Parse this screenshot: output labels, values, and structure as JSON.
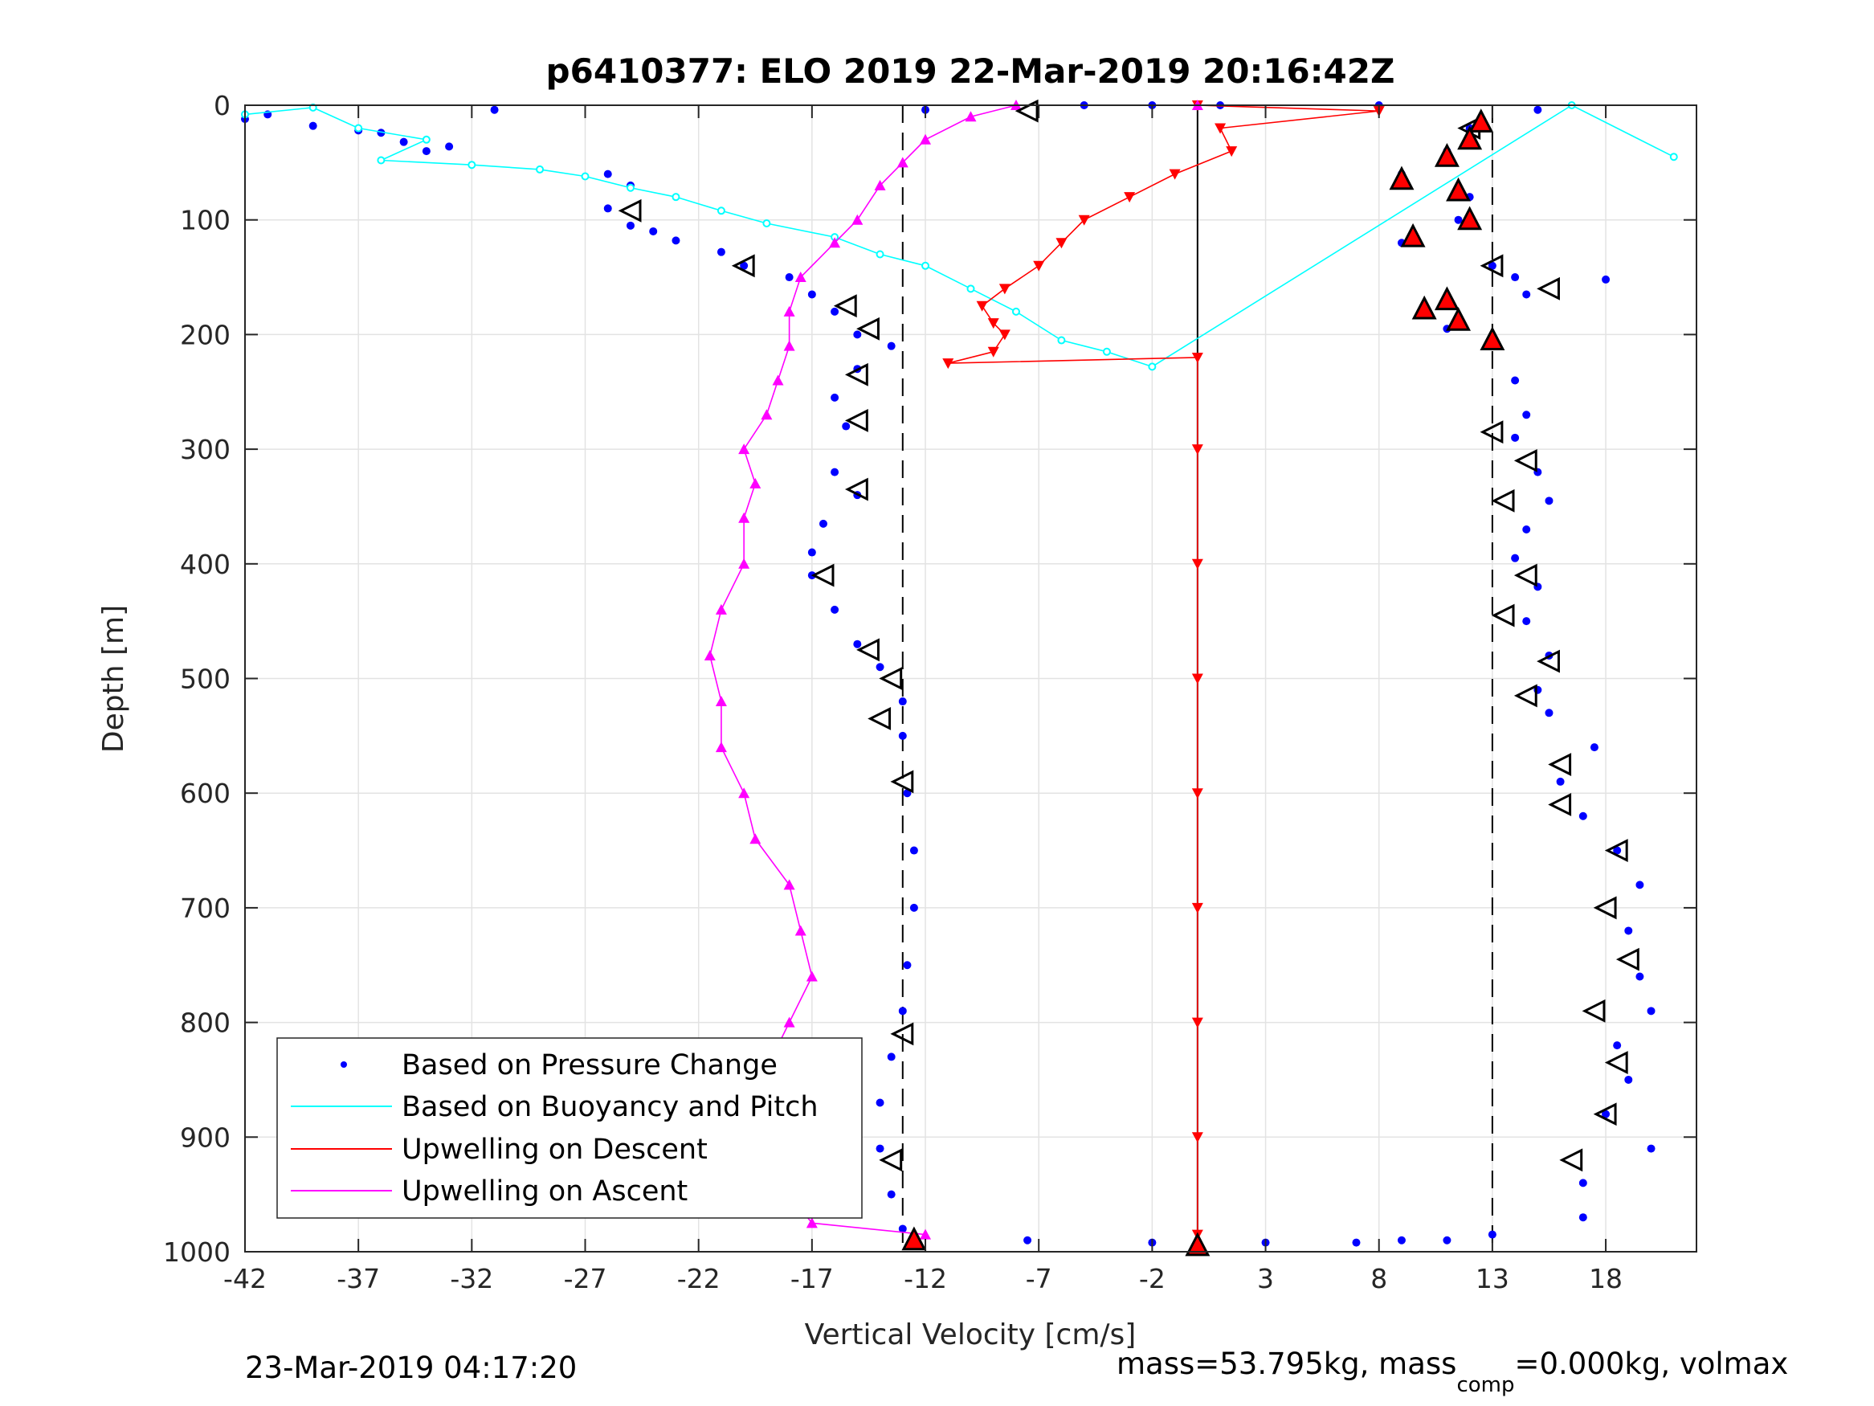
{
  "chart_data": {
    "type": "scatter",
    "title": "p6410377: ELO 2019 22-Mar-2019 20:16:42Z",
    "xlabel": "Vertical Velocity [cm/s]",
    "ylabel": "Depth [m]",
    "xlim": [
      -42,
      22
    ],
    "ylim": [
      0,
      1000
    ],
    "y_reversed": true,
    "xticks": [
      -42,
      -37,
      -32,
      -27,
      -22,
      -17,
      -12,
      -7,
      -2,
      3,
      8,
      13,
      18
    ],
    "xtick_labels": [
      "-42",
      "-37",
      "-32",
      "-27",
      "-22",
      "-17",
      "-12",
      "-7",
      "-2",
      "3",
      "8",
      "13",
      "18"
    ],
    "yticks": [
      0,
      100,
      200,
      300,
      400,
      500,
      600,
      700,
      800,
      900,
      1000
    ],
    "ytick_labels": [
      "0",
      "100",
      "200",
      "300",
      "400",
      "500",
      "600",
      "700",
      "800",
      "900",
      "1000"
    ],
    "grid": true,
    "legend_position": "bottom-left",
    "colors": {
      "pressure": "#0000ff",
      "buoyancy": "#00ffff",
      "descent": "#ff0000",
      "ascent": "#ff00ff"
    },
    "reference_lines": [
      {
        "x": -13,
        "style": "dashed"
      },
      {
        "x": 13,
        "style": "dashed"
      },
      {
        "x": 0,
        "style": "solid"
      }
    ],
    "series": [
      {
        "name": "Based on Pressure Change",
        "marker": "dot",
        "points": [
          [
            -42,
            12
          ],
          [
            -41,
            8
          ],
          [
            -39,
            18
          ],
          [
            -37,
            22
          ],
          [
            -36,
            24
          ],
          [
            -35,
            32
          ],
          [
            -34,
            40
          ],
          [
            -33,
            36
          ],
          [
            -31,
            4
          ],
          [
            -26,
            60
          ],
          [
            -25,
            70
          ],
          [
            -26,
            90
          ],
          [
            -25,
            105
          ],
          [
            -24,
            110
          ],
          [
            -23,
            118
          ],
          [
            -21,
            128
          ],
          [
            -20,
            140
          ],
          [
            -18,
            150
          ],
          [
            -17,
            165
          ],
          [
            -16,
            180
          ],
          [
            -15,
            200
          ],
          [
            -13.5,
            210
          ],
          [
            -15,
            230
          ],
          [
            -16,
            255
          ],
          [
            -15.5,
            280
          ],
          [
            -16,
            320
          ],
          [
            -15,
            340
          ],
          [
            -16.5,
            365
          ],
          [
            -17,
            390
          ],
          [
            -17,
            410
          ],
          [
            -16,
            440
          ],
          [
            -15,
            470
          ],
          [
            -14,
            490
          ],
          [
            -13,
            520
          ],
          [
            -13,
            550
          ],
          [
            -12.8,
            600
          ],
          [
            -12.5,
            650
          ],
          [
            -12.5,
            700
          ],
          [
            -12.8,
            750
          ],
          [
            -13,
            790
          ],
          [
            -13.5,
            830
          ],
          [
            -14,
            870
          ],
          [
            -14,
            910
          ],
          [
            -13.5,
            950
          ],
          [
            -13,
            980
          ],
          [
            -12.5,
            992
          ],
          [
            -7.5,
            990
          ],
          [
            -2,
            992
          ],
          [
            3,
            992
          ],
          [
            7,
            992
          ],
          [
            9,
            990
          ],
          [
            11,
            990
          ],
          [
            13,
            985
          ],
          [
            -12,
            4
          ],
          [
            -5,
            0
          ],
          [
            -2,
            0
          ],
          [
            1,
            0
          ],
          [
            8,
            0
          ],
          [
            15,
            4
          ],
          [
            12,
            20
          ],
          [
            11,
            40
          ],
          [
            9,
            60
          ],
          [
            12,
            80
          ],
          [
            11.5,
            100
          ],
          [
            9,
            120
          ],
          [
            13,
            140
          ],
          [
            14,
            150
          ],
          [
            14.5,
            165
          ],
          [
            18,
            152
          ],
          [
            10,
            180
          ],
          [
            11,
            195
          ],
          [
            13,
            210
          ],
          [
            14,
            240
          ],
          [
            14.5,
            270
          ],
          [
            14,
            290
          ],
          [
            15,
            320
          ],
          [
            15.5,
            345
          ],
          [
            14.5,
            370
          ],
          [
            14,
            395
          ],
          [
            15,
            420
          ],
          [
            14.5,
            450
          ],
          [
            15.5,
            480
          ],
          [
            15,
            510
          ],
          [
            15.5,
            530
          ],
          [
            17.5,
            560
          ],
          [
            16,
            590
          ],
          [
            17,
            620
          ],
          [
            18.5,
            650
          ],
          [
            19.5,
            680
          ],
          [
            19,
            720
          ],
          [
            19.5,
            760
          ],
          [
            20,
            790
          ],
          [
            18.5,
            820
          ],
          [
            19,
            850
          ],
          [
            18,
            880
          ],
          [
            20,
            910
          ],
          [
            17,
            940
          ],
          [
            17,
            970
          ]
        ]
      },
      {
        "name": "Based on Buoyancy and Pitch",
        "marker": "circle-line",
        "points": [
          [
            -42,
            8
          ],
          [
            -39,
            2
          ],
          [
            -37,
            20
          ],
          [
            -34,
            30
          ],
          [
            -36,
            48
          ],
          [
            -32,
            52
          ],
          [
            -29,
            56
          ],
          [
            -27,
            62
          ],
          [
            -25,
            72
          ],
          [
            -23,
            80
          ],
          [
            -21,
            92
          ],
          [
            -19,
            103
          ],
          [
            -16,
            115
          ],
          [
            -14,
            130
          ],
          [
            -12,
            140
          ],
          [
            -10,
            160
          ],
          [
            -8,
            180
          ],
          [
            -6,
            205
          ],
          [
            -4,
            215
          ],
          [
            -2,
            228
          ],
          [
            16.5,
            0
          ],
          [
            21,
            45
          ]
        ]
      },
      {
        "name": "Upwelling on Descent",
        "marker": "triangle-down-line",
        "points": [
          [
            0,
            0
          ],
          [
            8,
            5
          ],
          [
            1,
            20
          ],
          [
            1.5,
            40
          ],
          [
            -1,
            60
          ],
          [
            -3,
            80
          ],
          [
            -5,
            100
          ],
          [
            -6,
            120
          ],
          [
            -7,
            140
          ],
          [
            -8.5,
            160
          ],
          [
            -9.5,
            175
          ],
          [
            -9,
            190
          ],
          [
            -8.5,
            200
          ],
          [
            -9,
            215
          ],
          [
            -11,
            225
          ],
          [
            0,
            220
          ],
          [
            0,
            300
          ],
          [
            0,
            400
          ],
          [
            0,
            500
          ],
          [
            0,
            600
          ],
          [
            0,
            700
          ],
          [
            0,
            800
          ],
          [
            0,
            900
          ],
          [
            0,
            985
          ]
        ]
      },
      {
        "name": "Upwelling on Ascent",
        "marker": "triangle-up-line",
        "points": [
          [
            -12,
            985
          ],
          [
            -17,
            975
          ],
          [
            -18,
            950
          ],
          [
            -19,
            910
          ],
          [
            -18.5,
            880
          ],
          [
            -19,
            840
          ],
          [
            -18,
            800
          ],
          [
            -17,
            760
          ],
          [
            -17.5,
            720
          ],
          [
            -18,
            680
          ],
          [
            -19.5,
            640
          ],
          [
            -20,
            600
          ],
          [
            -21,
            560
          ],
          [
            -21,
            520
          ],
          [
            -21.5,
            480
          ],
          [
            -21,
            440
          ],
          [
            -20,
            400
          ],
          [
            -20,
            360
          ],
          [
            -19.5,
            330
          ],
          [
            -20,
            300
          ],
          [
            -19,
            270
          ],
          [
            -18.5,
            240
          ],
          [
            -18,
            210
          ],
          [
            -18,
            180
          ],
          [
            -17.5,
            150
          ],
          [
            -16,
            120
          ],
          [
            -15,
            100
          ],
          [
            -14,
            70
          ],
          [
            -13,
            50
          ],
          [
            -12,
            30
          ],
          [
            -10,
            10
          ],
          [
            -8,
            0
          ],
          [
            0,
            0
          ]
        ]
      },
      {
        "name": "",
        "marker": "open-triangle",
        "points": [
          [
            -7.5,
            5
          ],
          [
            -25,
            92
          ],
          [
            -20,
            140
          ],
          [
            -15.5,
            175
          ],
          [
            -14.5,
            195
          ],
          [
            -15,
            235
          ],
          [
            -15,
            275
          ],
          [
            -15,
            335
          ],
          [
            -16.5,
            410
          ],
          [
            -14.5,
            475
          ],
          [
            -13.5,
            500
          ],
          [
            -14,
            535
          ],
          [
            -13,
            590
          ],
          [
            -13,
            810
          ],
          [
            -13.5,
            920
          ],
          [
            12,
            20
          ],
          [
            13,
            140
          ],
          [
            15.5,
            160
          ],
          [
            13,
            285
          ],
          [
            14.5,
            310
          ],
          [
            13.5,
            345
          ],
          [
            14.5,
            410
          ],
          [
            13.5,
            445
          ],
          [
            15.5,
            485
          ],
          [
            14.5,
            515
          ],
          [
            16,
            575
          ],
          [
            16,
            610
          ],
          [
            18.5,
            650
          ],
          [
            18,
            700
          ],
          [
            19,
            745
          ],
          [
            17.5,
            790
          ],
          [
            18.5,
            835
          ],
          [
            18,
            880
          ],
          [
            16.5,
            920
          ]
        ]
      },
      {
        "name": "",
        "marker": "filled-triangle",
        "points": [
          [
            -12.5,
            990
          ],
          [
            0,
            995
          ],
          [
            12.5,
            15
          ],
          [
            12,
            30
          ],
          [
            11,
            45
          ],
          [
            9,
            65
          ],
          [
            11.5,
            75
          ],
          [
            12,
            100
          ],
          [
            9.5,
            115
          ],
          [
            10,
            178
          ],
          [
            11,
            170
          ],
          [
            11.5,
            188
          ],
          [
            13,
            205
          ]
        ]
      }
    ],
    "footer_left": "23-Mar-2019 04:17:20",
    "footer_right_prefix": "mass=53.795kg, mass",
    "footer_right_sub": "comp",
    "footer_right_suffix": "=0.000kg, volmax"
  }
}
